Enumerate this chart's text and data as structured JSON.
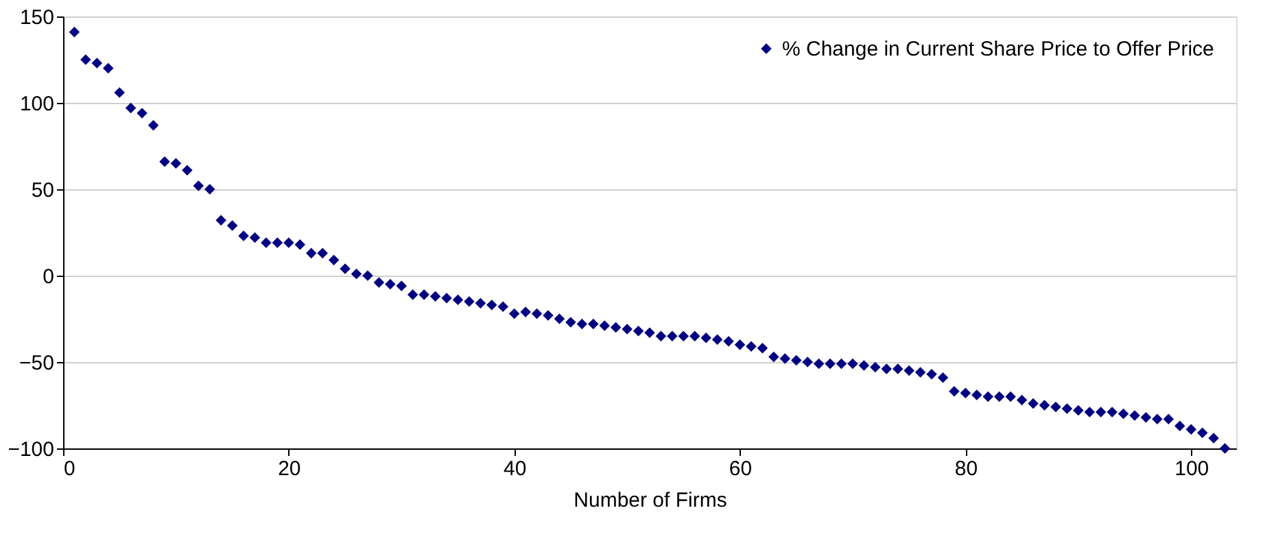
{
  "chart_data": {
    "type": "scatter",
    "xlabel": "Number of Firms",
    "xlim": [
      0,
      104
    ],
    "xticks": [
      0,
      20,
      40,
      60,
      80,
      100
    ],
    "ylim": [
      -100,
      150
    ],
    "yticks": [
      -100,
      -50,
      0,
      50,
      100,
      150
    ],
    "grid": "y",
    "legend": "top right",
    "marker": "diamond",
    "x": [
      1,
      2,
      3,
      4,
      5,
      6,
      7,
      8,
      9,
      10,
      11,
      12,
      13,
      14,
      15,
      16,
      17,
      18,
      19,
      20,
      21,
      22,
      23,
      24,
      25,
      26,
      27,
      28,
      29,
      30,
      31,
      32,
      33,
      34,
      35,
      36,
      37,
      38,
      39,
      40,
      41,
      42,
      43,
      44,
      45,
      46,
      47,
      48,
      49,
      50,
      51,
      52,
      53,
      54,
      55,
      56,
      57,
      58,
      59,
      60,
      61,
      62,
      63,
      64,
      65,
      66,
      67,
      68,
      69,
      70,
      71,
      72,
      73,
      74,
      75,
      76,
      77,
      78,
      79,
      80,
      81,
      82,
      83,
      84,
      85,
      86,
      87,
      88,
      89,
      90,
      91,
      92,
      93,
      94,
      95,
      96,
      97,
      98,
      99,
      100,
      101,
      102,
      103
    ],
    "series": [
      {
        "name": "% Change in Current Share Price to Offer Price",
        "color": "#000080",
        "values": [
          141,
          125,
          123,
          120,
          106,
          97,
          94,
          87,
          66,
          65,
          61,
          52,
          50,
          32,
          29,
          23,
          22,
          19,
          19,
          19,
          18,
          13,
          13,
          9,
          4,
          1,
          0,
          -4,
          -5,
          -6,
          -11,
          -11,
          -12,
          -13,
          -14,
          -15,
          -16,
          -17,
          -18,
          -22,
          -21,
          -22,
          -23,
          -25,
          -27,
          -28,
          -28,
          -29,
          -30,
          -31,
          -32,
          -33,
          -35,
          -35,
          -35,
          -35,
          -36,
          -37,
          -38,
          -40,
          -41,
          -42,
          -47,
          -48,
          -49,
          -50,
          -51,
          -51,
          -51,
          -51,
          -52,
          -53,
          -54,
          -54,
          -55,
          -56,
          -57,
          -59,
          -67,
          -68,
          -69,
          -70,
          -70,
          -70,
          -72,
          -74,
          -75,
          -76,
          -77,
          -78,
          -79,
          -79,
          -79,
          -80,
          -81,
          -82,
          -83,
          -83,
          -87,
          -89,
          -91,
          -94,
          -100
        ]
      }
    ]
  }
}
